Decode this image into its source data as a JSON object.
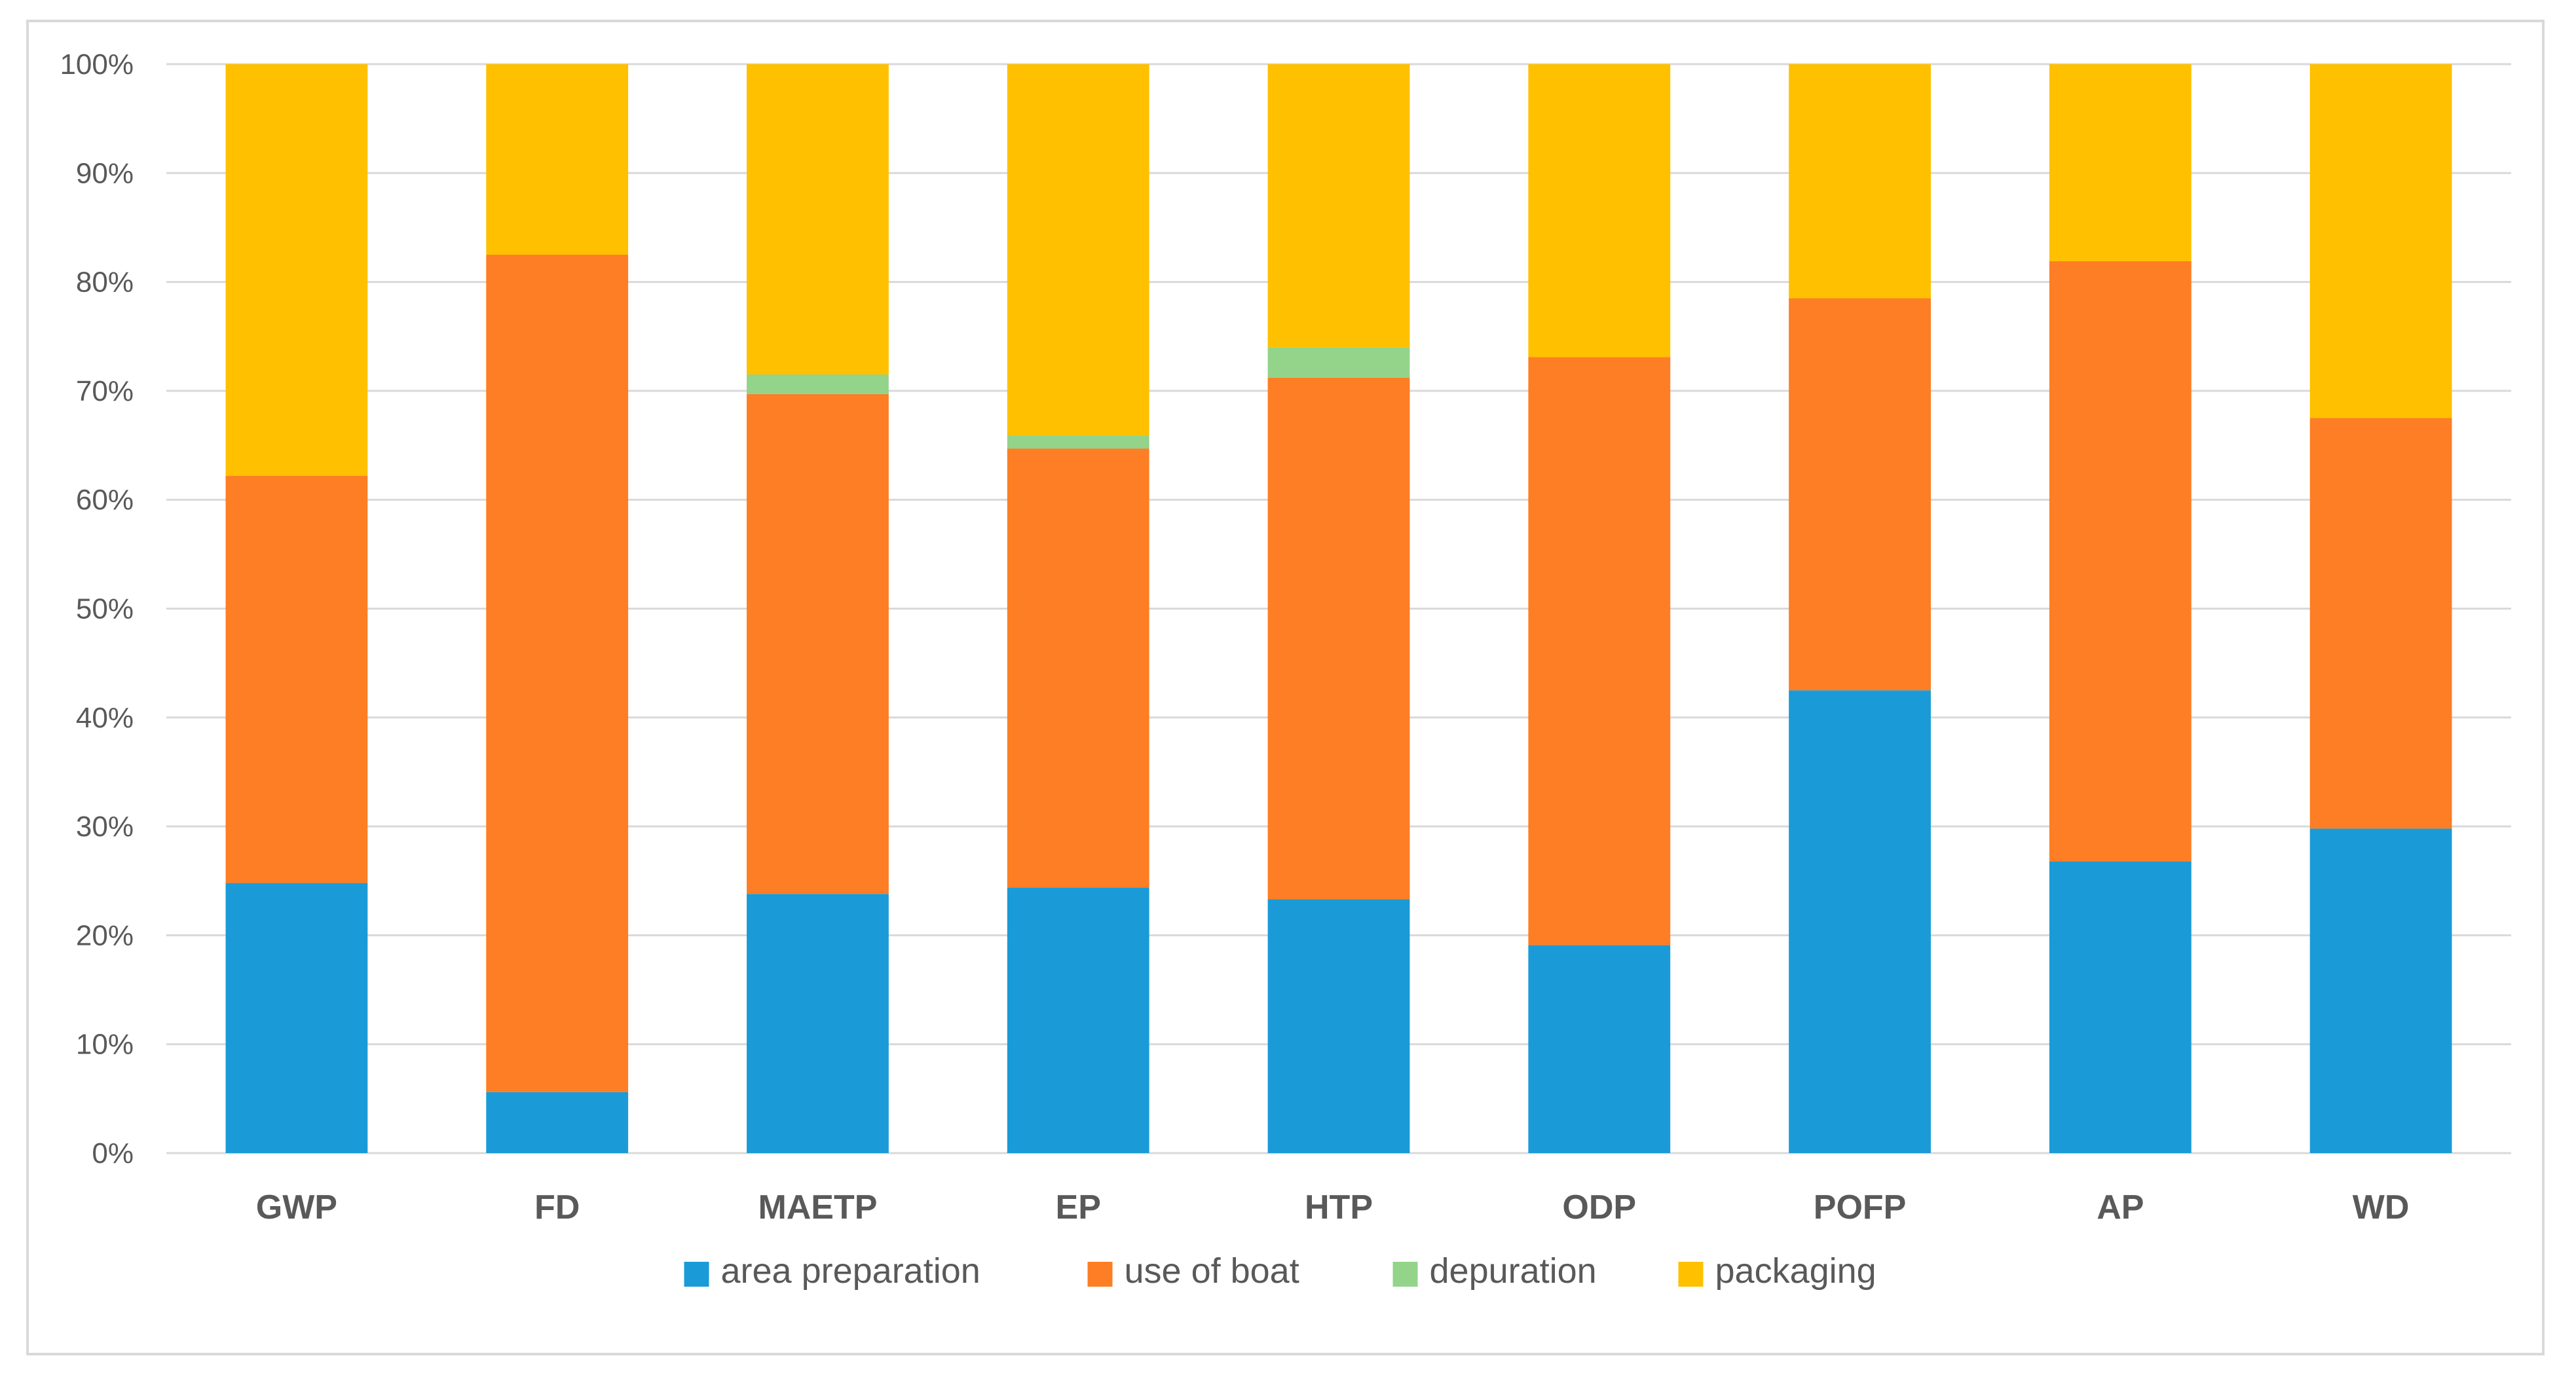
{
  "chart_data": {
    "type": "bar",
    "stacked": true,
    "normalized_percent": true,
    "title": "",
    "xlabel": "",
    "ylabel": "",
    "ylim": [
      0,
      100
    ],
    "yticks": [
      "0%",
      "10%",
      "20%",
      "30%",
      "40%",
      "50%",
      "60%",
      "70%",
      "80%",
      "90%",
      "100%"
    ],
    "grid": true,
    "legend_position": "bottom",
    "categories": [
      "GWP",
      "FD",
      "MAETP",
      "EP",
      "HTP",
      "ODP",
      "POFP",
      "AP",
      "WD"
    ],
    "series": [
      {
        "name": "area preparation",
        "color": "#1a9bd7",
        "values": [
          24.8,
          5.6,
          23.8,
          24.4,
          23.3,
          19.1,
          42.5,
          26.8,
          29.8
        ]
      },
      {
        "name": "use of boat",
        "color": "#fd7e24",
        "values": [
          37.4,
          76.9,
          45.9,
          40.3,
          47.9,
          54.0,
          36.0,
          55.1,
          37.7
        ]
      },
      {
        "name": "depuration",
        "color": "#93d38a",
        "values": [
          0.0,
          0.0,
          1.8,
          1.2,
          2.8,
          0.0,
          0.0,
          0.0,
          0.0
        ]
      },
      {
        "name": "packaging",
        "color": "#ffc000",
        "values": [
          37.8,
          17.5,
          28.5,
          34.1,
          26.0,
          26.9,
          21.5,
          18.1,
          32.5
        ]
      }
    ]
  }
}
